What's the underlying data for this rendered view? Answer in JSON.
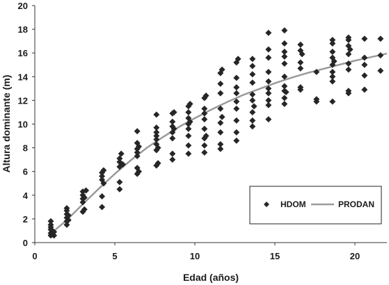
{
  "chart_data": {
    "type": "scatter",
    "xlabel": "Edad (años)",
    "ylabel": "Altura dominante (m)",
    "xlim": [
      0,
      22
    ],
    "ylim": [
      0,
      20
    ],
    "xticks": [
      0,
      5,
      10,
      15,
      20
    ],
    "yticks": [
      0,
      2,
      4,
      6,
      8,
      10,
      12,
      14,
      16,
      18,
      20
    ],
    "grid": false,
    "legend_position": "bottom-right",
    "series": [
      {
        "name": "HDOM",
        "marker": "diamond",
        "color": "#262626",
        "points": [
          [
            1.0,
            0.6
          ],
          [
            1.0,
            0.8
          ],
          [
            1.0,
            1.1
          ],
          [
            1.0,
            1.3
          ],
          [
            1.0,
            1.5
          ],
          [
            1.0,
            1.8
          ],
          [
            1.1,
            0.7
          ],
          [
            1.1,
            1.0
          ],
          [
            1.2,
            0.6
          ],
          [
            1.2,
            0.9
          ],
          [
            2.0,
            1.5
          ],
          [
            2.0,
            1.8
          ],
          [
            2.0,
            2.1
          ],
          [
            2.0,
            2.4
          ],
          [
            2.0,
            2.7
          ],
          [
            2.0,
            2.9
          ],
          [
            2.1,
            1.9
          ],
          [
            2.1,
            2.3
          ],
          [
            3.0,
            2.6
          ],
          [
            3.0,
            3.4
          ],
          [
            3.0,
            3.7
          ],
          [
            3.0,
            4.0
          ],
          [
            3.0,
            4.3
          ],
          [
            3.1,
            2.8
          ],
          [
            3.1,
            3.8
          ],
          [
            3.2,
            4.4
          ],
          [
            4.2,
            3.0
          ],
          [
            4.2,
            3.9
          ],
          [
            4.2,
            5.3
          ],
          [
            4.2,
            5.6
          ],
          [
            4.2,
            5.9
          ],
          [
            4.3,
            5.0
          ],
          [
            4.3,
            6.1
          ],
          [
            5.3,
            4.5
          ],
          [
            5.3,
            5.1
          ],
          [
            5.3,
            6.4
          ],
          [
            5.3,
            6.8
          ],
          [
            5.3,
            7.1
          ],
          [
            5.4,
            7.5
          ],
          [
            5.5,
            6.6
          ],
          [
            6.4,
            5.8
          ],
          [
            6.4,
            6.3
          ],
          [
            6.4,
            7.3
          ],
          [
            6.4,
            7.6
          ],
          [
            6.4,
            7.9
          ],
          [
            6.4,
            8.4
          ],
          [
            6.4,
            9.4
          ],
          [
            6.5,
            8.1
          ],
          [
            6.5,
            6.0
          ],
          [
            7.6,
            6.5
          ],
          [
            7.6,
            7.8
          ],
          [
            7.6,
            8.3
          ],
          [
            7.6,
            8.7
          ],
          [
            7.6,
            9.0
          ],
          [
            7.6,
            9.3
          ],
          [
            7.6,
            9.7
          ],
          [
            7.6,
            10.8
          ],
          [
            7.7,
            6.7
          ],
          [
            7.7,
            8.0
          ],
          [
            8.6,
            7.0
          ],
          [
            8.6,
            7.5
          ],
          [
            8.6,
            8.8
          ],
          [
            8.6,
            9.3
          ],
          [
            8.6,
            9.8
          ],
          [
            8.6,
            10.2
          ],
          [
            8.6,
            10.9
          ],
          [
            8.7,
            9.6
          ],
          [
            8.7,
            11.0
          ],
          [
            9.6,
            7.5
          ],
          [
            9.6,
            8.2
          ],
          [
            9.6,
            9.0
          ],
          [
            9.6,
            9.6
          ],
          [
            9.6,
            10.0
          ],
          [
            9.6,
            10.5
          ],
          [
            9.6,
            11.0
          ],
          [
            9.6,
            11.5
          ],
          [
            9.7,
            10.2
          ],
          [
            9.7,
            11.7
          ],
          [
            10.6,
            7.6
          ],
          [
            10.6,
            8.2
          ],
          [
            10.6,
            8.8
          ],
          [
            10.6,
            9.6
          ],
          [
            10.6,
            10.4
          ],
          [
            10.6,
            10.9
          ],
          [
            10.6,
            11.3
          ],
          [
            10.6,
            12.2
          ],
          [
            10.7,
            9.0
          ],
          [
            10.7,
            12.4
          ],
          [
            11.6,
            7.9
          ],
          [
            11.6,
            8.3
          ],
          [
            11.6,
            9.3
          ],
          [
            11.6,
            10.1
          ],
          [
            11.6,
            11.3
          ],
          [
            11.6,
            12.6
          ],
          [
            11.6,
            13.4
          ],
          [
            11.6,
            14.3
          ],
          [
            11.7,
            10.6
          ],
          [
            11.7,
            14.6
          ],
          [
            12.6,
            8.6
          ],
          [
            12.6,
            9.3
          ],
          [
            12.6,
            10.3
          ],
          [
            12.6,
            11.3
          ],
          [
            12.6,
            11.9
          ],
          [
            12.6,
            12.6
          ],
          [
            12.6,
            13.1
          ],
          [
            12.6,
            13.9
          ],
          [
            12.6,
            15.2
          ],
          [
            12.7,
            15.5
          ],
          [
            13.6,
            9.8
          ],
          [
            13.6,
            10.3
          ],
          [
            13.6,
            11.0
          ],
          [
            13.6,
            12.0
          ],
          [
            13.6,
            12.5
          ],
          [
            13.6,
            13.5
          ],
          [
            13.6,
            14.2
          ],
          [
            13.6,
            14.9
          ],
          [
            13.6,
            15.5
          ],
          [
            13.7,
            11.5
          ],
          [
            14.6,
            10.4
          ],
          [
            14.6,
            11.6
          ],
          [
            14.6,
            12.0
          ],
          [
            14.6,
            12.6
          ],
          [
            14.6,
            13.0
          ],
          [
            14.6,
            13.6
          ],
          [
            14.6,
            14.4
          ],
          [
            14.6,
            15.6
          ],
          [
            14.6,
            16.3
          ],
          [
            14.6,
            17.7
          ],
          [
            15.6,
            11.7
          ],
          [
            15.6,
            12.2
          ],
          [
            15.6,
            12.8
          ],
          [
            15.6,
            13.2
          ],
          [
            15.6,
            14.0
          ],
          [
            15.6,
            15.1
          ],
          [
            15.6,
            15.7
          ],
          [
            15.6,
            16.1
          ],
          [
            15.6,
            16.8
          ],
          [
            15.6,
            17.9
          ],
          [
            15.7,
            12.7
          ],
          [
            16.6,
            12.9
          ],
          [
            16.6,
            13.1
          ],
          [
            16.6,
            14.7
          ],
          [
            16.6,
            15.2
          ],
          [
            16.6,
            16.2
          ],
          [
            16.6,
            16.7
          ],
          [
            16.7,
            15.9
          ],
          [
            17.6,
            11.9
          ],
          [
            17.6,
            12.1
          ],
          [
            17.6,
            14.4
          ],
          [
            18.6,
            11.9
          ],
          [
            18.6,
            13.6
          ],
          [
            18.6,
            14.0
          ],
          [
            18.6,
            14.4
          ],
          [
            18.6,
            15.0
          ],
          [
            18.6,
            15.6
          ],
          [
            18.6,
            16.1
          ],
          [
            18.6,
            16.8
          ],
          [
            18.6,
            17.1
          ],
          [
            18.7,
            15.3
          ],
          [
            19.6,
            12.6
          ],
          [
            19.6,
            12.8
          ],
          [
            19.6,
            14.6
          ],
          [
            19.6,
            15.1
          ],
          [
            19.6,
            15.9
          ],
          [
            19.6,
            16.6
          ],
          [
            19.6,
            17.1
          ],
          [
            19.6,
            17.3
          ],
          [
            19.7,
            16.3
          ],
          [
            20.6,
            12.9
          ],
          [
            20.6,
            14.1
          ],
          [
            20.6,
            15.0
          ],
          [
            20.6,
            15.6
          ],
          [
            20.6,
            17.2
          ],
          [
            21.6,
            14.5
          ],
          [
            21.6,
            15.8
          ],
          [
            21.6,
            17.2
          ]
        ]
      },
      {
        "name": "PRODAN",
        "type": "line",
        "color": "#9a9a9a",
        "points": [
          [
            1.0,
            0.75
          ],
          [
            2.0,
            1.9
          ],
          [
            3.0,
            3.25
          ],
          [
            4.0,
            4.55
          ],
          [
            5.0,
            5.8
          ],
          [
            6.0,
            6.95
          ],
          [
            7.0,
            8.0
          ],
          [
            8.0,
            8.9
          ],
          [
            9.0,
            9.75
          ],
          [
            10.0,
            10.5
          ],
          [
            11.0,
            11.2
          ],
          [
            12.0,
            11.85
          ],
          [
            13.0,
            12.45
          ],
          [
            14.0,
            12.95
          ],
          [
            15.0,
            13.45
          ],
          [
            16.0,
            13.9
          ],
          [
            17.0,
            14.3
          ],
          [
            18.0,
            14.65
          ],
          [
            19.0,
            15.0
          ],
          [
            20.0,
            15.35
          ],
          [
            21.0,
            15.65
          ],
          [
            22.0,
            15.95
          ]
        ]
      }
    ]
  }
}
